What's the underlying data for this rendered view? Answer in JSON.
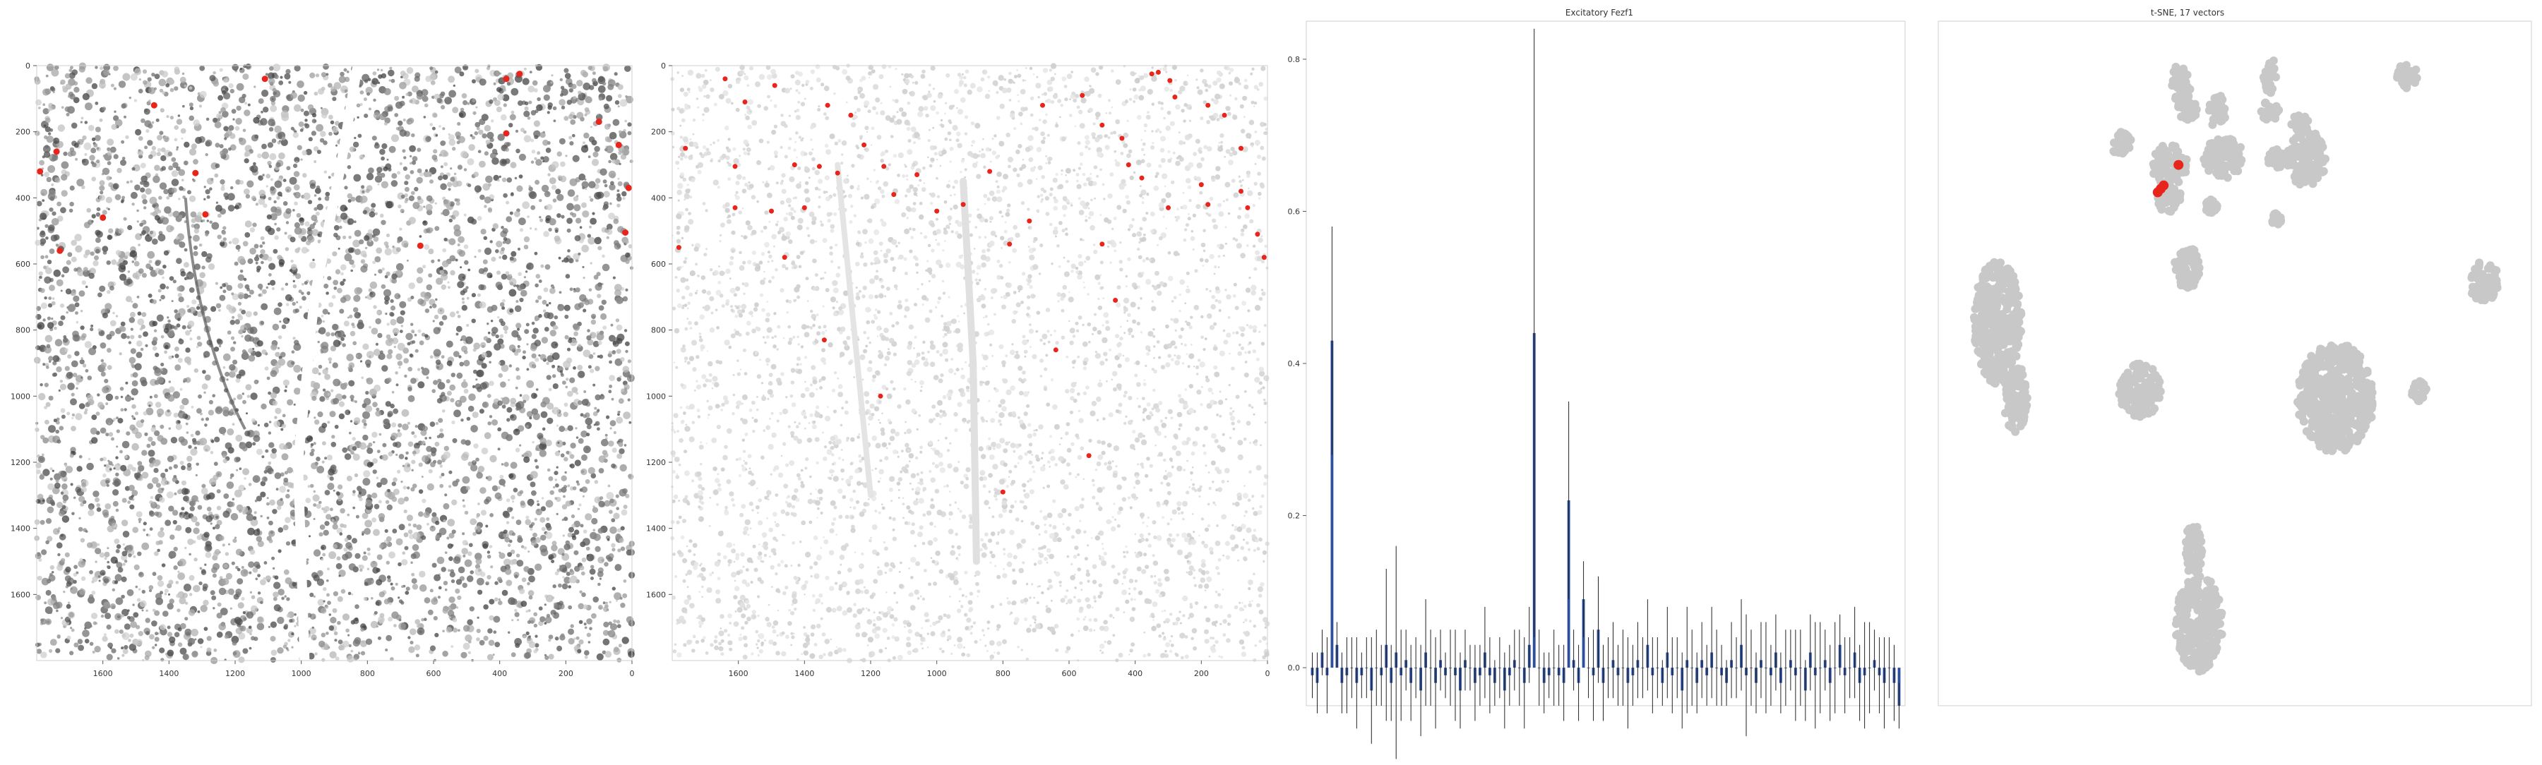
{
  "panels": [
    {
      "title": ""
    },
    {
      "title": ""
    },
    {
      "title": "Excitatory Fezf1"
    },
    {
      "title": "t-SNE, 17 vectors"
    }
  ],
  "colors": {
    "highlight": "#e8241b",
    "bar": "#2c4f9e",
    "error": "#222222",
    "grey_cells": "#d4d4d4",
    "tsne_grey": "#c8c8c8",
    "dark_tissue": "#5a5a5a",
    "frame": "#cfcfcf"
  },
  "chart_data": [
    {
      "type": "scatter",
      "name": "tissue-section",
      "xlim": [
        1800,
        0
      ],
      "ylim": [
        1800,
        0
      ],
      "xticks": [
        1600,
        1400,
        1200,
        1000,
        800,
        600,
        400,
        200,
        0
      ],
      "yticks": [
        0,
        200,
        400,
        600,
        800,
        1000,
        1200,
        1400,
        1600
      ],
      "grid": false,
      "highlight_points": [
        [
          1110,
          40
        ],
        [
          1445,
          120
        ],
        [
          1600,
          460
        ],
        [
          1320,
          325
        ],
        [
          1790,
          320
        ],
        [
          1740,
          260
        ],
        [
          380,
          40
        ],
        [
          340,
          25
        ],
        [
          100,
          170
        ],
        [
          40,
          240
        ],
        [
          380,
          205
        ],
        [
          640,
          545
        ],
        [
          10,
          370
        ],
        [
          20,
          505
        ],
        [
          1730,
          560
        ],
        [
          1290,
          450
        ]
      ]
    },
    {
      "type": "scatter",
      "name": "segmented-cells",
      "xlim": [
        1800,
        0
      ],
      "ylim": [
        1800,
        0
      ],
      "xticks": [
        1600,
        1400,
        1200,
        1000,
        800,
        600,
        400,
        200,
        0
      ],
      "yticks": [
        0,
        200,
        400,
        600,
        800,
        1000,
        1200,
        1400,
        1600
      ],
      "grid": false,
      "highlight_points": [
        [
          1640,
          40
        ],
        [
          1490,
          60
        ],
        [
          1580,
          110
        ],
        [
          1330,
          120
        ],
        [
          1260,
          150
        ],
        [
          1760,
          250
        ],
        [
          1610,
          305
        ],
        [
          1430,
          300
        ],
        [
          1355,
          305
        ],
        [
          1300,
          325
        ],
        [
          1160,
          305
        ],
        [
          1060,
          330
        ],
        [
          840,
          320
        ],
        [
          1610,
          430
        ],
        [
          1500,
          440
        ],
        [
          1400,
          430
        ],
        [
          1130,
          390
        ],
        [
          1000,
          440
        ],
        [
          780,
          540
        ],
        [
          1780,
          550
        ],
        [
          680,
          120
        ],
        [
          560,
          90
        ],
        [
          500,
          180
        ],
        [
          440,
          220
        ],
        [
          350,
          25
        ],
        [
          330,
          20
        ],
        [
          295,
          45
        ],
        [
          280,
          95
        ],
        [
          180,
          120
        ],
        [
          130,
          150
        ],
        [
          420,
          300
        ],
        [
          380,
          340
        ],
        [
          200,
          360
        ],
        [
          180,
          420
        ],
        [
          80,
          380
        ],
        [
          60,
          430
        ],
        [
          30,
          510
        ],
        [
          10,
          580
        ],
        [
          500,
          540
        ],
        [
          460,
          710
        ],
        [
          640,
          860
        ],
        [
          800,
          1290
        ],
        [
          540,
          1180
        ],
        [
          1340,
          830
        ],
        [
          1170,
          1000
        ],
        [
          1460,
          580
        ],
        [
          920,
          420
        ],
        [
          720,
          470
        ],
        [
          300,
          430
        ],
        [
          80,
          250
        ],
        [
          1220,
          240
        ]
      ]
    },
    {
      "type": "bar",
      "title": "Excitatory Fezf1",
      "ylim": [
        -0.05,
        0.85
      ],
      "yticks": [
        0.0,
        0.2,
        0.4,
        0.6,
        0.8
      ],
      "tick_labels": [
        "0.0",
        "0.2",
        "0.4",
        "0.6",
        "0.8"
      ],
      "grid": false,
      "n_bars": 120,
      "values": [
        -0.01,
        -0.02,
        0.02,
        -0.01,
        0.43,
        0.03,
        -0.02,
        -0.01,
        0.0,
        -0.02,
        -0.01,
        0.0,
        -0.03,
        0.0,
        -0.01,
        0.03,
        -0.02,
        0.02,
        -0.01,
        0.01,
        -0.02,
        0.0,
        -0.03,
        0.02,
        0.0,
        -0.02,
        0.01,
        -0.01,
        0.0,
        -0.01,
        -0.03,
        0.01,
        0.0,
        -0.02,
        -0.01,
        0.02,
        -0.01,
        -0.02,
        0.0,
        -0.03,
        -0.01,
        0.01,
        0.0,
        -0.02,
        0.03,
        0.44,
        0.0,
        -0.02,
        -0.01,
        0.0,
        -0.01,
        -0.02,
        0.22,
        0.01,
        -0.02,
        0.09,
        0.0,
        -0.01,
        0.05,
        -0.02,
        0.0,
        0.01,
        -0.01,
        0.0,
        -0.02,
        -0.01,
        0.01,
        0.0,
        0.03,
        -0.01,
        0.0,
        -0.02,
        0.02,
        -0.01,
        0.0,
        -0.03,
        0.01,
        0.0,
        -0.02,
        0.01,
        -0.01,
        0.02,
        0.0,
        -0.01,
        -0.02,
        0.01,
        0.0,
        0.03,
        -0.01,
        0.0,
        -0.02,
        0.01,
        0.0,
        -0.01,
        0.02,
        -0.02,
        0.0,
        0.01,
        -0.01,
        0.0,
        -0.03,
        0.02,
        -0.01,
        0.0,
        0.01,
        -0.02,
        0.0,
        0.03,
        -0.01,
        0.0,
        0.02,
        -0.02,
        -0.01,
        0.0,
        0.01,
        -0.01,
        -0.02,
        0.0,
        -0.02,
        -0.05
      ],
      "errors": [
        0.03,
        0.04,
        0.03,
        0.05,
        0.15,
        0.03,
        0.04,
        0.05,
        0.04,
        0.06,
        0.03,
        0.04,
        0.07,
        0.05,
        0.04,
        0.1,
        0.05,
        0.14,
        0.06,
        0.04,
        0.05,
        0.04,
        0.06,
        0.07,
        0.05,
        0.06,
        0.04,
        0.03,
        0.05,
        0.06,
        0.05,
        0.04,
        0.03,
        0.05,
        0.04,
        0.06,
        0.05,
        0.03,
        0.04,
        0.05,
        0.04,
        0.04,
        0.05,
        0.06,
        0.05,
        0.4,
        0.05,
        0.04,
        0.03,
        0.05,
        0.04,
        0.05,
        0.13,
        0.04,
        0.05,
        0.05,
        0.04,
        0.06,
        0.07,
        0.05,
        0.04,
        0.05,
        0.04,
        0.05,
        0.06,
        0.04,
        0.05,
        0.04,
        0.06,
        0.05,
        0.04,
        0.03,
        0.06,
        0.05,
        0.04,
        0.05,
        0.07,
        0.05,
        0.04,
        0.05,
        0.04,
        0.06,
        0.05,
        0.04,
        0.03,
        0.05,
        0.04,
        0.06,
        0.08,
        0.05,
        0.04,
        0.05,
        0.06,
        0.04,
        0.05,
        0.04,
        0.05,
        0.04,
        0.06,
        0.05,
        0.04,
        0.05,
        0.07,
        0.06,
        0.04,
        0.05,
        0.06,
        0.04,
        0.05,
        0.04,
        0.06,
        0.05,
        0.07,
        0.06,
        0.04,
        0.05,
        0.06,
        0.04,
        0.05,
        0.03
      ]
    },
    {
      "type": "scatter",
      "title": "t-SNE, 17 vectors",
      "grid": false,
      "axes": "off",
      "clusters": [
        {
          "cx": 0.41,
          "cy": 0.09,
          "rx": 0.016,
          "ry": 0.03
        },
        {
          "cx": 0.56,
          "cy": 0.08,
          "rx": 0.012,
          "ry": 0.025
        },
        {
          "cx": 0.79,
          "cy": 0.08,
          "rx": 0.018,
          "ry": 0.018
        },
        {
          "cx": 0.42,
          "cy": 0.13,
          "rx": 0.018,
          "ry": 0.015
        },
        {
          "cx": 0.47,
          "cy": 0.13,
          "rx": 0.015,
          "ry": 0.025
        },
        {
          "cx": 0.56,
          "cy": 0.13,
          "rx": 0.018,
          "ry": 0.015
        },
        {
          "cx": 0.61,
          "cy": 0.15,
          "rx": 0.015,
          "ry": 0.015
        },
        {
          "cx": 0.31,
          "cy": 0.18,
          "rx": 0.018,
          "ry": 0.02
        },
        {
          "cx": 0.39,
          "cy": 0.21,
          "rx": 0.03,
          "ry": 0.03
        },
        {
          "cx": 0.48,
          "cy": 0.2,
          "rx": 0.035,
          "ry": 0.03
        },
        {
          "cx": 0.62,
          "cy": 0.2,
          "rx": 0.035,
          "ry": 0.04
        },
        {
          "cx": 0.57,
          "cy": 0.2,
          "rx": 0.015,
          "ry": 0.015
        },
        {
          "cx": 0.39,
          "cy": 0.26,
          "rx": 0.022,
          "ry": 0.02
        },
        {
          "cx": 0.46,
          "cy": 0.27,
          "rx": 0.01,
          "ry": 0.01
        },
        {
          "cx": 0.57,
          "cy": 0.29,
          "rx": 0.008,
          "ry": 0.01
        },
        {
          "cx": 0.42,
          "cy": 0.36,
          "rx": 0.022,
          "ry": 0.03
        },
        {
          "cx": 0.1,
          "cy": 0.44,
          "rx": 0.04,
          "ry": 0.09
        },
        {
          "cx": 0.13,
          "cy": 0.55,
          "rx": 0.02,
          "ry": 0.05
        },
        {
          "cx": 0.92,
          "cy": 0.38,
          "rx": 0.025,
          "ry": 0.03
        },
        {
          "cx": 0.34,
          "cy": 0.54,
          "rx": 0.035,
          "ry": 0.04
        },
        {
          "cx": 0.67,
          "cy": 0.55,
          "rx": 0.065,
          "ry": 0.08
        },
        {
          "cx": 0.81,
          "cy": 0.54,
          "rx": 0.015,
          "ry": 0.015
        },
        {
          "cx": 0.43,
          "cy": 0.77,
          "rx": 0.015,
          "ry": 0.04
        },
        {
          "cx": 0.44,
          "cy": 0.88,
          "rx": 0.04,
          "ry": 0.07
        }
      ],
      "highlight_points": [
        [
          0.375,
          0.245
        ],
        [
          0.405,
          0.21
        ],
        [
          0.38,
          0.24
        ],
        [
          0.37,
          0.25
        ]
      ]
    }
  ]
}
